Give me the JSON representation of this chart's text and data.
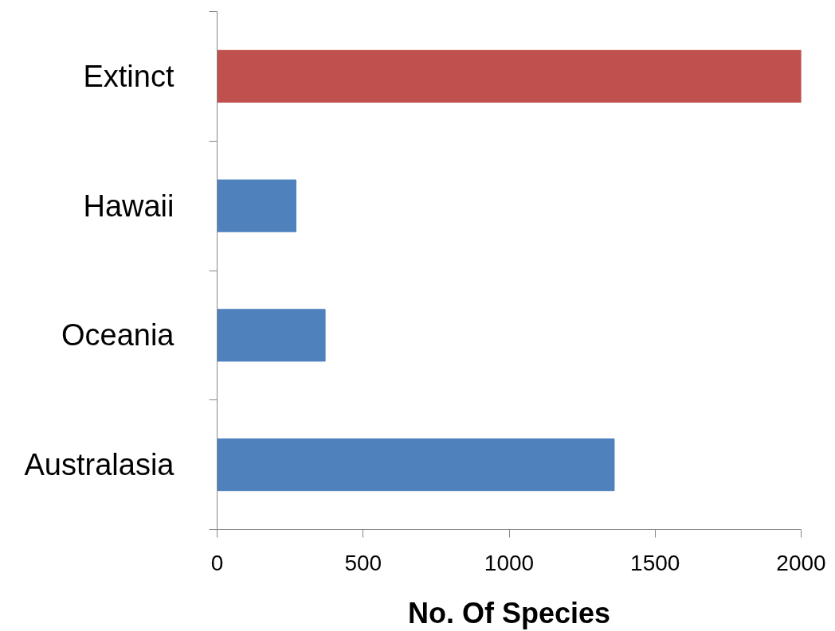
{
  "chart_data": {
    "type": "bar",
    "orientation": "horizontal",
    "xlabel": "No. Of Species",
    "categories": [
      "Extinct",
      "Hawaii",
      "Oceania",
      "Australasia"
    ],
    "values": [
      2000,
      270,
      370,
      1360
    ],
    "colors": [
      "#c0504d",
      "#4f81bd",
      "#4f81bd",
      "#4f81bd"
    ],
    "xlim": [
      0,
      2000
    ],
    "xticks": [
      0,
      500,
      1000,
      1500,
      2000
    ],
    "grid": false
  }
}
